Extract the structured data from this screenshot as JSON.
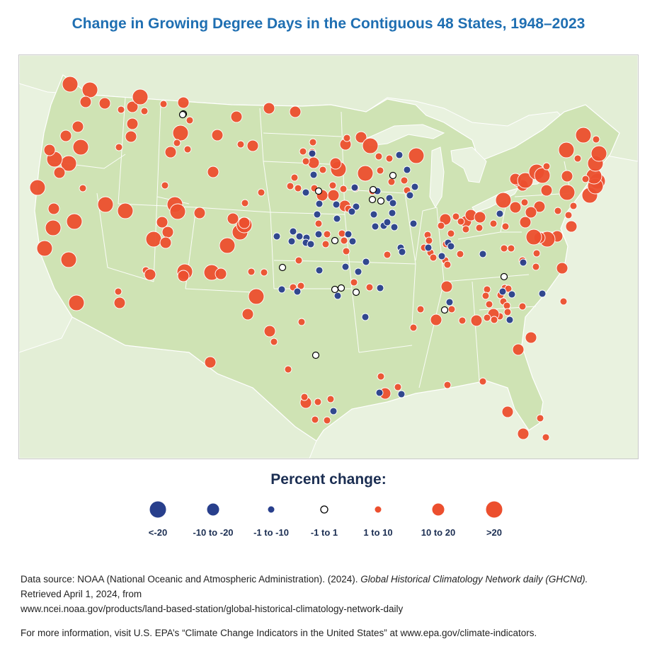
{
  "title": "Change in Growing Degree Days in the Contiguous 48 States, 1948–2023",
  "legend": {
    "title": "Percent change:",
    "items": [
      {
        "label": "<-20",
        "color": "#283f8c",
        "category": "lt-neg20"
      },
      {
        "label": "-10 to -20",
        "color": "#283f8c",
        "category": "neg10-20"
      },
      {
        "label": "-1 to -10",
        "color": "#283f8c",
        "category": "neg1-10"
      },
      {
        "label": "-1 to 1",
        "color": "#ffffff",
        "category": "neutral"
      },
      {
        "label": "1 to 10",
        "color": "#ec4f2e",
        "category": "pos1-10"
      },
      {
        "label": "10 to 20",
        "color": "#ec4f2e",
        "category": "pos10-20"
      },
      {
        "label": ">20",
        "color": "#ec4f2e",
        "category": "gt20"
      }
    ]
  },
  "source": {
    "prefix": "Data source: NOAA (National Oceanic and Atmospheric Administration). (2024).",
    "dataset_title": "Global Historical Climatology Network daily (GHCNd).",
    "retrieved": "Retrieved April 1, 2024, from",
    "url": "www.ncei.noaa.gov/products/land-based-station/global-historical-climatology-network-daily"
  },
  "more_info": "For more information, visit U.S. EPA’s “Climate Change Indicators in the United States” at www.epa.gov/climate-indicators.",
  "colors": {
    "positive": "#ec4f2e",
    "negative": "#283f8c",
    "neutral": "#ffffff",
    "land_us": "#cfe3b4",
    "land_other": "#e6f0dc",
    "water": "#e9f2df",
    "title": "#1f6fb2",
    "legend_text": "#1b2e52"
  }
}
